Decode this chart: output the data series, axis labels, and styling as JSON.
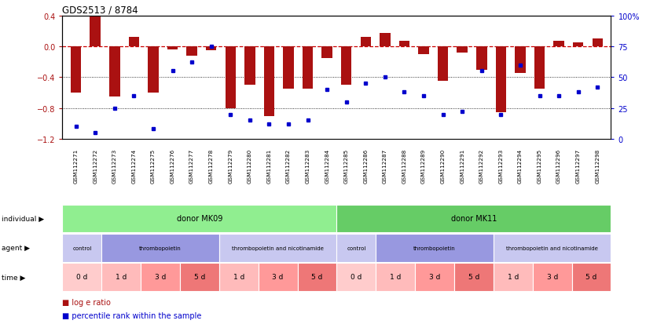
{
  "title": "GDS2513 / 8784",
  "samples": [
    "GSM112271",
    "GSM112272",
    "GSM112273",
    "GSM112274",
    "GSM112275",
    "GSM112276",
    "GSM112277",
    "GSM112278",
    "GSM112279",
    "GSM112280",
    "GSM112281",
    "GSM112282",
    "GSM112283",
    "GSM112284",
    "GSM112285",
    "GSM112286",
    "GSM112287",
    "GSM112288",
    "GSM112289",
    "GSM112290",
    "GSM112291",
    "GSM112292",
    "GSM112293",
    "GSM112294",
    "GSM112295",
    "GSM112296",
    "GSM112297",
    "GSM112298"
  ],
  "log_e_ratio": [
    -0.6,
    0.4,
    -0.65,
    0.12,
    -0.6,
    -0.04,
    -0.12,
    -0.05,
    -0.8,
    -0.5,
    -0.9,
    -0.55,
    -0.55,
    -0.15,
    -0.5,
    0.12,
    0.17,
    0.07,
    -0.1,
    -0.45,
    -0.08,
    -0.3,
    -0.85,
    -0.35,
    -0.55,
    0.07,
    0.05,
    0.1
  ],
  "percentile": [
    10,
    5,
    25,
    35,
    8,
    55,
    62,
    75,
    20,
    15,
    12,
    12,
    15,
    40,
    30,
    45,
    50,
    38,
    35,
    20,
    22,
    55,
    20,
    60,
    35,
    35,
    38,
    42
  ],
  "ylim_left": [
    -1.2,
    0.4
  ],
  "ylim_right": [
    0,
    100
  ],
  "yticks_left": [
    -1.2,
    -0.8,
    -0.4,
    0.0,
    0.4
  ],
  "yticks_right": [
    0,
    25,
    50,
    75,
    100
  ],
  "bar_color": "#aa1111",
  "dot_color": "#0000cc",
  "zero_line_color": "#cc0000",
  "grid_line_color": "#000000",
  "individual_row": [
    {
      "label": "donor MK09",
      "start": 0,
      "end": 14,
      "color": "#90ee90"
    },
    {
      "label": "donor MK11",
      "start": 14,
      "end": 28,
      "color": "#66cc66"
    }
  ],
  "agent_row": [
    {
      "label": "control",
      "start": 0,
      "end": 2,
      "color": "#c8c8f0"
    },
    {
      "label": "thrombopoietin",
      "start": 2,
      "end": 8,
      "color": "#9898e0"
    },
    {
      "label": "thrombopoietin and nicotinamide",
      "start": 8,
      "end": 14,
      "color": "#c8c8f0"
    },
    {
      "label": "control",
      "start": 14,
      "end": 16,
      "color": "#c8c8f0"
    },
    {
      "label": "thrombopoietin",
      "start": 16,
      "end": 22,
      "color": "#9898e0"
    },
    {
      "label": "thrombopoietin and nicotinamide",
      "start": 22,
      "end": 28,
      "color": "#c8c8f0"
    }
  ],
  "time_row": [
    {
      "label": "0 d",
      "start": 0,
      "end": 2,
      "color": "#ffcccc"
    },
    {
      "label": "1 d",
      "start": 2,
      "end": 4,
      "color": "#ffbbbb"
    },
    {
      "label": "3 d",
      "start": 4,
      "end": 6,
      "color": "#ff9999"
    },
    {
      "label": "5 d",
      "start": 6,
      "end": 8,
      "color": "#ee7777"
    },
    {
      "label": "1 d",
      "start": 8,
      "end": 10,
      "color": "#ffbbbb"
    },
    {
      "label": "3 d",
      "start": 10,
      "end": 12,
      "color": "#ff9999"
    },
    {
      "label": "5 d",
      "start": 12,
      "end": 14,
      "color": "#ee7777"
    },
    {
      "label": "0 d",
      "start": 14,
      "end": 16,
      "color": "#ffcccc"
    },
    {
      "label": "1 d",
      "start": 16,
      "end": 18,
      "color": "#ffbbbb"
    },
    {
      "label": "3 d",
      "start": 18,
      "end": 20,
      "color": "#ff9999"
    },
    {
      "label": "5 d",
      "start": 20,
      "end": 22,
      "color": "#ee7777"
    },
    {
      "label": "1 d",
      "start": 22,
      "end": 24,
      "color": "#ffbbbb"
    },
    {
      "label": "3 d",
      "start": 24,
      "end": 26,
      "color": "#ff9999"
    },
    {
      "label": "5 d",
      "start": 26,
      "end": 28,
      "color": "#ee7777"
    }
  ],
  "row_labels": [
    "individual",
    "agent",
    "time"
  ],
  "legend_items": [
    {
      "label": "log e ratio",
      "color": "#aa1111"
    },
    {
      "label": "percentile rank within the sample",
      "color": "#0000cc"
    }
  ],
  "bg_color": "#ffffff",
  "tick_label_bg": "#cccccc"
}
